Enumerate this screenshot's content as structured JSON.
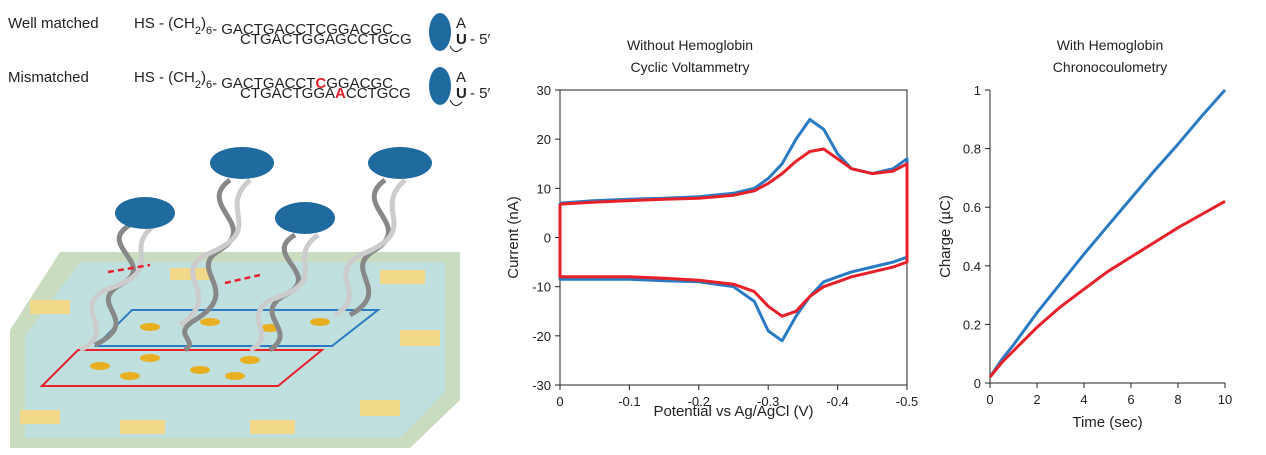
{
  "diagram": {
    "rows": [
      {
        "label": "Well matched",
        "prefix": "HS - (CH",
        "sub": "2",
        "close": ")",
        "sub2": "6",
        "top": [
          "- GACTGACCT",
          "C",
          "GGACGC"
        ],
        "bottom": [
          "CTGACTGGA",
          "G",
          "CCTGCG"
        ],
        "end_top": "A",
        "end_u": "U",
        "end_5": "- 5′"
      },
      {
        "label": "Mismatched",
        "prefix": "HS -  (CH",
        "sub": "2",
        "close": ")",
        "sub2": "6",
        "top": [
          "- GACTGACCT",
          "C",
          "GGACGC"
        ],
        "bottom": [
          "CTGACTGGA",
          "A",
          "CCTGCG"
        ],
        "end_top": "A",
        "end_u": "U",
        "end_5": "- 5′",
        "highlight_color": "#e8202a"
      }
    ]
  },
  "chart_data": [
    {
      "type": "line",
      "title": "Without Hemoglobin",
      "subtitle": "Cyclic Voltammetry",
      "x_label": "Potential vs Ag/AgCl (V)",
      "y_label": "Current (nA)",
      "xlim": [
        0,
        -0.5
      ],
      "xticks": [
        0,
        -0.1,
        -0.2,
        -0.3,
        -0.4,
        -0.5
      ],
      "ylim": [
        -30,
        30
      ],
      "yticks": [
        -30,
        -20,
        -10,
        0,
        10,
        20,
        30
      ],
      "x": [
        0,
        -0.05,
        -0.1,
        -0.15,
        -0.2,
        -0.25,
        -0.28,
        -0.3,
        -0.32,
        -0.34,
        -0.36,
        -0.38,
        -0.4,
        -0.42,
        -0.45,
        -0.48,
        -0.5,
        -0.5,
        -0.48,
        -0.45,
        -0.42,
        -0.4,
        -0.38,
        -0.36,
        -0.34,
        -0.32,
        -0.3,
        -0.28,
        -0.25,
        -0.2,
        -0.15,
        -0.1,
        -0.05,
        0,
        0
      ],
      "series": [
        {
          "name": "Well matched",
          "color": "#2a7bc4",
          "values": [
            7,
            7.5,
            7.8,
            8,
            8.3,
            9,
            10,
            12,
            15,
            20,
            24,
            22,
            17,
            14,
            13,
            14,
            16,
            -4,
            -5,
            -6,
            -7,
            -8,
            -9,
            -12,
            -16,
            -21,
            -19,
            -13,
            -10,
            -9,
            -8.8,
            -8.5,
            -8.5,
            -8.5,
            7
          ]
        },
        {
          "name": "Mismatched",
          "color": "#e8202a",
          "values": [
            6.8,
            7.2,
            7.5,
            7.8,
            8,
            8.6,
            9.5,
            11,
            13,
            15.5,
            17.5,
            18,
            16,
            14,
            13,
            13.5,
            15,
            -5,
            -6,
            -7,
            -8,
            -9,
            -10,
            -12,
            -15,
            -16,
            -14,
            -11,
            -9.5,
            -8.7,
            -8.3,
            -8,
            -8,
            -8,
            6.8
          ]
        }
      ]
    },
    {
      "type": "line",
      "title": "With Hemoglobin",
      "subtitle": "Chronocoulometry",
      "x_label": "Time (sec)",
      "y_label": "Charge (µC)",
      "xlim": [
        0,
        10
      ],
      "xticks": [
        0,
        2,
        4,
        6,
        8,
        10
      ],
      "ylim": [
        0,
        1
      ],
      "yticks": [
        0,
        0.2,
        0.4,
        0.6,
        0.8,
        1
      ],
      "x": [
        0,
        0.5,
        1,
        2,
        3,
        4,
        5,
        6,
        7,
        8,
        9,
        10
      ],
      "series": [
        {
          "name": "Well matched",
          "color": "#2a7bc4",
          "values": [
            0.02,
            0.08,
            0.13,
            0.24,
            0.34,
            0.44,
            0.535,
            0.63,
            0.725,
            0.815,
            0.91,
            1.0
          ]
        },
        {
          "name": "Mismatched",
          "color": "#e8202a",
          "values": [
            0.02,
            0.07,
            0.11,
            0.19,
            0.26,
            0.32,
            0.38,
            0.43,
            0.48,
            0.53,
            0.575,
            0.62
          ]
        }
      ]
    }
  ]
}
